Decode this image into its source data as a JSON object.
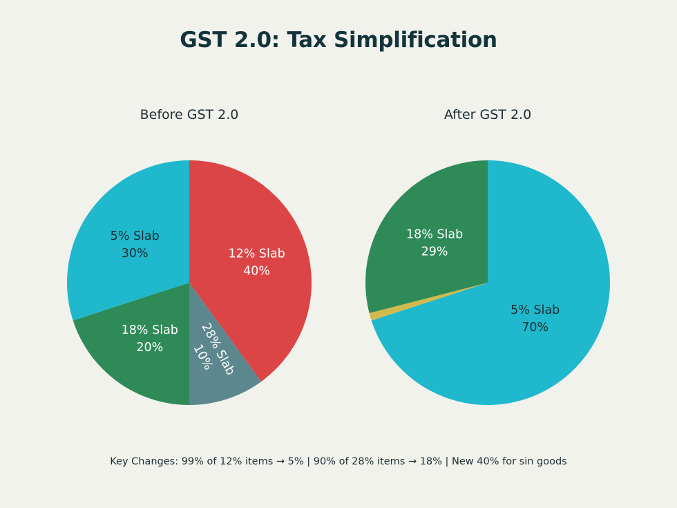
{
  "title": "GST 2.0: Tax Simplification",
  "footnote": "Key Changes: 99% of 12% items → 5% | 90% of 28% items → 18% | New 40% for sin goods",
  "colors": {
    "cyan": "#1fb8cd",
    "red": "#db4545",
    "green": "#2e8b57",
    "slate": "#5d878f",
    "gold": "#d2ba4c",
    "background": "#f2f2ed"
  },
  "chart_data": [
    {
      "type": "pie",
      "title": "Before GST 2.0",
      "slices": [
        {
          "label": "12% Slab",
          "value": 40,
          "value_label": "40%",
          "color": "#db4545"
        },
        {
          "label": "28% Slab",
          "value": 10,
          "value_label": "10%",
          "color": "#5d878f"
        },
        {
          "label": "18% Slab",
          "value": 20,
          "value_label": "20%",
          "color": "#2e8b57"
        },
        {
          "label": "5% Slab",
          "value": 30,
          "value_label": "30%",
          "color": "#1fb8cd"
        }
      ]
    },
    {
      "type": "pie",
      "title": "After GST 2.0",
      "slices": [
        {
          "label": "5% Slab",
          "value": 70,
          "value_label": "70%",
          "color": "#1fb8cd"
        },
        {
          "label": "",
          "value": 1,
          "value_label": "",
          "color": "#d2ba4c"
        },
        {
          "label": "18% Slab",
          "value": 29,
          "value_label": "29%",
          "color": "#2e8b57"
        }
      ]
    }
  ]
}
